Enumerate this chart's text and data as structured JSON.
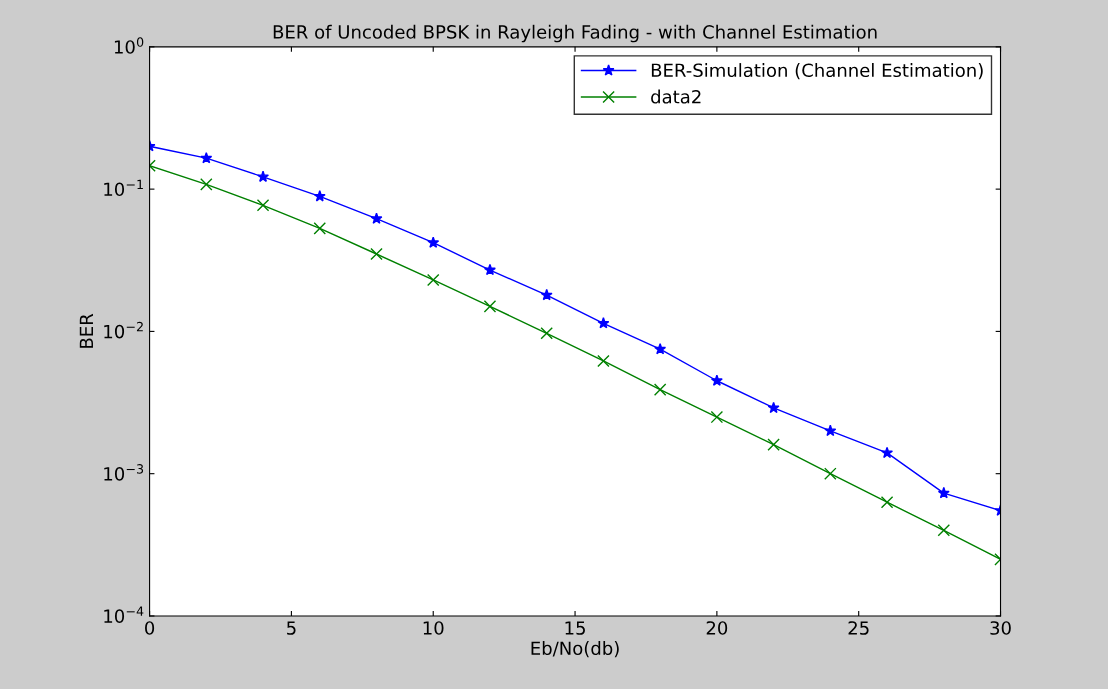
{
  "chart_data": {
    "type": "line",
    "title": "BER of Uncoded BPSK in Rayleigh Fading - with Channel Estimation",
    "xlabel": "Eb/No(db)",
    "ylabel": "BER",
    "x": [
      0,
      2,
      4,
      6,
      8,
      10,
      12,
      14,
      16,
      18,
      20,
      22,
      24,
      26,
      28,
      30
    ],
    "series": [
      {
        "name": "BER-Simulation (Channel Estimation)",
        "color": "#0000ff",
        "marker": "star",
        "values": [
          0.2,
          0.165,
          0.122,
          0.089,
          0.062,
          0.042,
          0.027,
          0.018,
          0.0114,
          0.0075,
          0.0045,
          0.0029,
          0.002,
          0.0014,
          0.00073,
          0.00055
        ]
      },
      {
        "name": "data2",
        "color": "#008000",
        "marker": "cross",
        "values": [
          0.146,
          0.108,
          0.077,
          0.053,
          0.035,
          0.023,
          0.015,
          0.0097,
          0.0062,
          0.0039,
          0.0025,
          0.0016,
          0.001,
          0.00063,
          0.0004,
          0.00025
        ]
      }
    ],
    "log": "y",
    "xlim": [
      0,
      30
    ],
    "xticks": [
      0,
      5,
      10,
      15,
      20,
      25,
      30
    ],
    "ylim": [
      0.0001,
      1
    ],
    "yticks": [
      {
        "value": 0.0001,
        "label": "10$^{−4}$"
      },
      {
        "value": 0.001,
        "label": "10$^{−3}$"
      },
      {
        "value": 0.01,
        "label": "10$^{−2}$"
      },
      {
        "value": 0.1,
        "label": "10$^{−1}$"
      },
      {
        "value": 1,
        "label": "10$^{0}$"
      }
    ],
    "grid": false,
    "legend": "top right",
    "line_style": "solid"
  }
}
